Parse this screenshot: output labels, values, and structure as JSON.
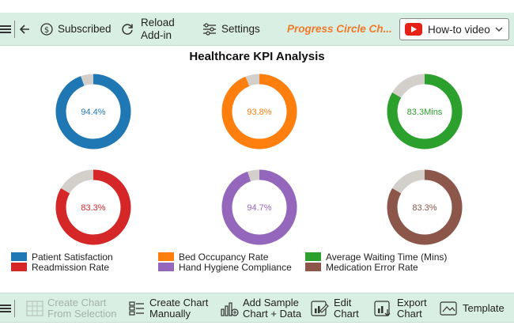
{
  "toolbar": {
    "subscribed_label": "Subscribed",
    "reload_label_1": "Reload",
    "reload_label_2": "Add-in",
    "settings_label": "Settings",
    "brand_label": "Progress Circle Ch...",
    "howto_label": "How-to video",
    "icons": [
      "menu-icon",
      "back-arrow-icon",
      "dollar-coin-icon",
      "refresh-icon",
      "sliders-icon",
      "youtube-icon",
      "chevron-down-icon"
    ]
  },
  "chart_data": {
    "type": "progress-circle",
    "title": "Healthcare KPI Analysis",
    "series": [
      {
        "name": "Patient Satisfaction",
        "value": 94.4,
        "label": "94.4%",
        "color": "#1f77b4"
      },
      {
        "name": "Bed Occupancy Rate",
        "value": 93.8,
        "label": "93.8%",
        "color": "#ff7f0e"
      },
      {
        "name": "Average Waiting Time (Mins)",
        "value": 83.3,
        "label": "83.3Mins",
        "color": "#2ca02c"
      },
      {
        "name": "Readmission Rate",
        "value": 83.3,
        "label": "83.3%",
        "color": "#d62728"
      },
      {
        "name": "Hand Hygiene Compliance",
        "value": 94.7,
        "label": "94.7%",
        "color": "#9467bd"
      },
      {
        "name": "Medication Error Rate",
        "value": 83.3,
        "label": "83.3%",
        "color": "#8c564b"
      }
    ],
    "track_color": "#d3d0cb",
    "max": 100,
    "legend": {
      "columns": 3,
      "order": [
        "Patient Satisfaction",
        "Readmission Rate",
        "Bed Occupancy Rate",
        "Hand Hygiene Compliance",
        "Average Waiting Time (Mins)",
        "Medication Error Rate"
      ]
    }
  },
  "bottom_toolbar": {
    "create_from_selection_1": "Create Chart",
    "create_from_selection_2": "From Selection",
    "create_manually_1": "Create Chart",
    "create_manually_2": "Manually",
    "add_sample_1": "Add Sample",
    "add_sample_2": "Chart + Data",
    "edit_chart_1": "Edit",
    "edit_chart_2": "Chart",
    "export_chart_1": "Export",
    "export_chart_2": "Chart",
    "template_label": "Template",
    "icons": [
      "menu-icon",
      "table-icon",
      "list-icon",
      "chart-add-icon",
      "edit-chart-icon",
      "export-chart-icon",
      "template-icon"
    ]
  }
}
